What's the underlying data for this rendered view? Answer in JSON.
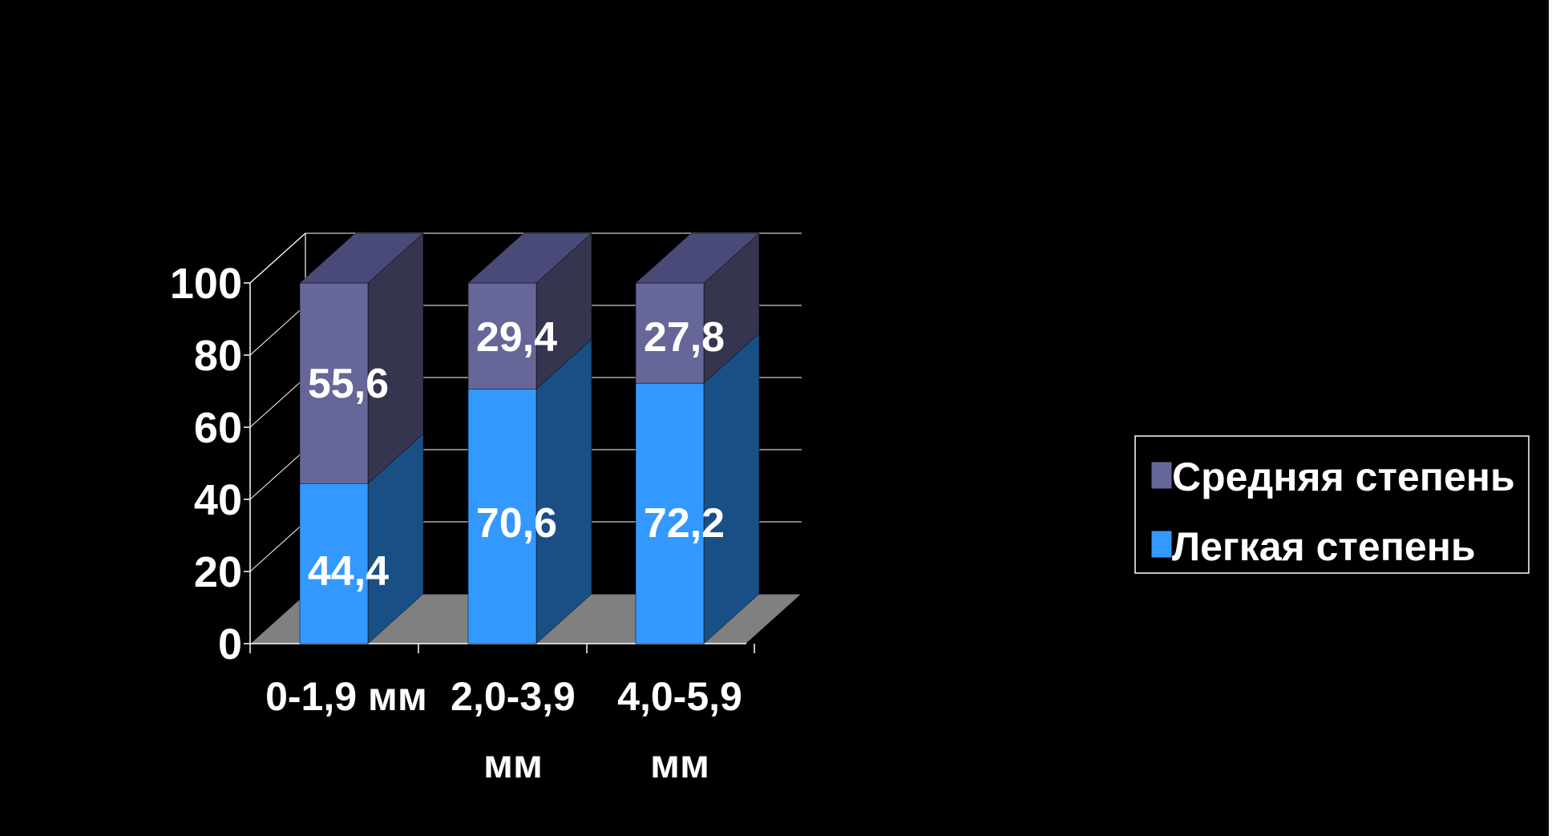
{
  "chart_data": {
    "type": "bar",
    "stacked": true,
    "three_d": true,
    "categories": [
      [
        "0-1,9 мм"
      ],
      [
        "2,0-3,9",
        "мм"
      ],
      [
        "4,0-5,9",
        "мм"
      ]
    ],
    "series": [
      {
        "name": "Легкая степень",
        "values": [
          44.4,
          70.6,
          72.2
        ],
        "labels": [
          "44,4",
          "70,6",
          "72,2"
        ],
        "color": "#3399ff"
      },
      {
        "name": "Средняя степень",
        "values": [
          55.6,
          29.4,
          27.8
        ],
        "labels": [
          "55,6",
          "29,4",
          "27,8"
        ],
        "color": "#666699"
      }
    ],
    "y_ticks": [
      "0",
      "20",
      "40",
      "60",
      "80",
      "100"
    ],
    "ylim": [
      0,
      100
    ],
    "grid": true,
    "legend_position": "right",
    "legend_order": [
      "Средняя степень",
      "Легкая степень"
    ],
    "background": "#000000",
    "floor_color": "#808080"
  }
}
